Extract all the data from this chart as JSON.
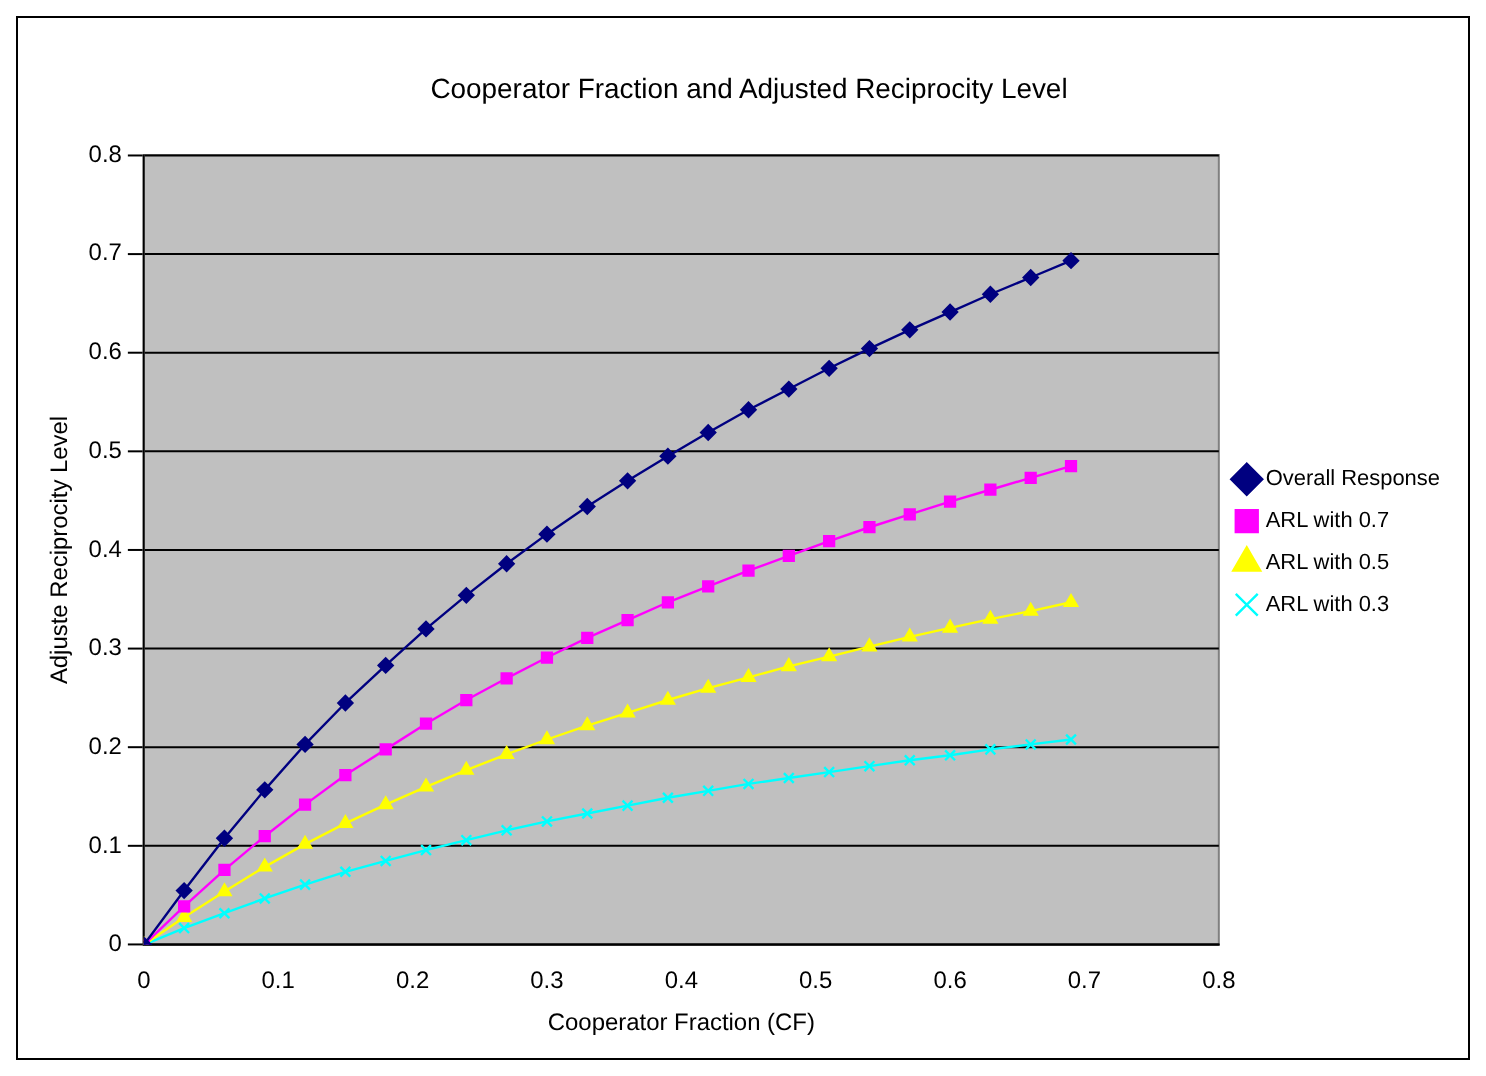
{
  "chart_data": {
    "type": "line",
    "title": "Cooperator Fraction and Adjusted Reciprocity Level",
    "xlabel": "Cooperator Fraction (CF)",
    "ylabel": "Adjuste Reciprocity Level",
    "x": [
      0,
      0.03,
      0.06,
      0.09,
      0.12,
      0.15,
      0.18,
      0.21,
      0.24,
      0.27,
      0.3,
      0.33,
      0.36,
      0.39,
      0.42,
      0.45,
      0.48,
      0.51,
      0.54,
      0.57,
      0.6,
      0.63,
      0.66,
      0.69
    ],
    "series": [
      {
        "name": "Overall Response",
        "color": "#000080",
        "marker": "diamond",
        "values": [
          0,
          0.055,
          0.108,
          0.157,
          0.203,
          0.245,
          0.283,
          0.32,
          0.354,
          0.386,
          0.416,
          0.444,
          0.47,
          0.495,
          0.519,
          0.542,
          0.563,
          0.584,
          0.604,
          0.623,
          0.641,
          0.659,
          0.676,
          0.693
        ]
      },
      {
        "name": "ARL with 0.7",
        "color": "#ff00ff",
        "marker": "square",
        "values": [
          0,
          0.039,
          0.076,
          0.11,
          0.142,
          0.172,
          0.198,
          0.224,
          0.248,
          0.27,
          0.291,
          0.311,
          0.329,
          0.347,
          0.363,
          0.379,
          0.394,
          0.409,
          0.423,
          0.436,
          0.449,
          0.461,
          0.473,
          0.485
        ]
      },
      {
        "name": "ARL with 0.5",
        "color": "#ffff00",
        "marker": "triangle",
        "values": [
          0,
          0.028,
          0.054,
          0.079,
          0.102,
          0.123,
          0.142,
          0.16,
          0.177,
          0.193,
          0.208,
          0.222,
          0.235,
          0.248,
          0.26,
          0.271,
          0.282,
          0.292,
          0.302,
          0.312,
          0.321,
          0.33,
          0.338,
          0.347
        ]
      },
      {
        "name": "ARL with 0.3",
        "color": "#00ffff",
        "marker": "cross",
        "values": [
          0,
          0.017,
          0.032,
          0.047,
          0.061,
          0.074,
          0.085,
          0.096,
          0.106,
          0.116,
          0.125,
          0.133,
          0.141,
          0.149,
          0.156,
          0.163,
          0.169,
          0.175,
          0.181,
          0.187,
          0.192,
          0.198,
          0.203,
          0.208
        ]
      }
    ],
    "xlim": [
      0,
      0.8
    ],
    "xticks": [
      0,
      0.1,
      0.2,
      0.3,
      0.4,
      0.5,
      0.6,
      0.7,
      0.8
    ],
    "ylim": [
      0,
      0.8
    ],
    "yticks": [
      0,
      0.1,
      0.2,
      0.3,
      0.4,
      0.5,
      0.6,
      0.7,
      0.8
    ],
    "grid": "y",
    "legend": "right"
  }
}
